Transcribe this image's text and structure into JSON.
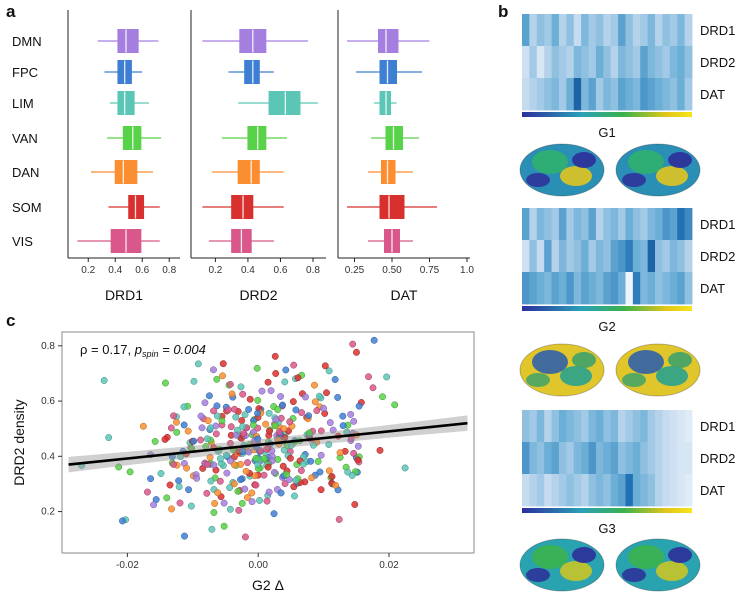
{
  "panels": {
    "a": "a",
    "b": "b",
    "c": "c"
  },
  "colors": {
    "DMN": "#a57fe0",
    "FPC": "#3e7fd4",
    "LIM": "#5cc6b6",
    "VAN": "#58d248",
    "DAN": "#fb8e30",
    "SOM": "#d8302f",
    "VIS": "#d9578a"
  },
  "chart_data": [
    {
      "type": "box",
      "title": "",
      "xlabel": "DRD1",
      "categories": [
        "DMN",
        "FPC",
        "LIM",
        "VAN",
        "DAN",
        "SOM",
        "VIS"
      ],
      "xlim": [
        0.05,
        0.88
      ],
      "ticks": [
        0.2,
        0.4,
        0.6,
        0.8
      ],
      "tick_labels": [
        "0.2",
        "0.4",
        "0.6",
        "0.8"
      ],
      "boxes": [
        {
          "min": 0.27,
          "q1": 0.42,
          "median": 0.48,
          "q3": 0.57,
          "max": 0.72
        },
        {
          "min": 0.32,
          "q1": 0.42,
          "median": 0.47,
          "q3": 0.52,
          "max": 0.6
        },
        {
          "min": 0.36,
          "q1": 0.42,
          "median": 0.47,
          "q3": 0.54,
          "max": 0.65
        },
        {
          "min": 0.34,
          "q1": 0.46,
          "median": 0.53,
          "q3": 0.59,
          "max": 0.74
        },
        {
          "min": 0.22,
          "q1": 0.4,
          "median": 0.46,
          "q3": 0.56,
          "max": 0.68
        },
        {
          "min": 0.35,
          "q1": 0.5,
          "median": 0.55,
          "q3": 0.61,
          "max": 0.73
        },
        {
          "min": 0.12,
          "q1": 0.37,
          "median": 0.48,
          "q3": 0.59,
          "max": 0.73
        }
      ]
    },
    {
      "type": "box",
      "title": "",
      "xlabel": "DRD2",
      "categories": [
        "DMN",
        "FPC",
        "LIM",
        "VAN",
        "DAN",
        "SOM",
        "VIS"
      ],
      "xlim": [
        0.05,
        0.88
      ],
      "ticks": [
        0.2,
        0.4,
        0.6,
        0.8
      ],
      "tick_labels": [
        "0.2",
        "0.4",
        "0.6",
        "0.8"
      ],
      "boxes": [
        {
          "min": 0.12,
          "q1": 0.35,
          "median": 0.43,
          "q3": 0.51,
          "max": 0.77
        },
        {
          "min": 0.28,
          "q1": 0.38,
          "median": 0.43,
          "q3": 0.47,
          "max": 0.56
        },
        {
          "min": 0.34,
          "q1": 0.53,
          "median": 0.63,
          "q3": 0.72,
          "max": 0.83
        },
        {
          "min": 0.24,
          "q1": 0.4,
          "median": 0.46,
          "q3": 0.51,
          "max": 0.64
        },
        {
          "min": 0.18,
          "q1": 0.34,
          "median": 0.42,
          "q3": 0.47,
          "max": 0.62
        },
        {
          "min": 0.12,
          "q1": 0.3,
          "median": 0.37,
          "q3": 0.43,
          "max": 0.62
        },
        {
          "min": 0.16,
          "q1": 0.3,
          "median": 0.36,
          "q3": 0.42,
          "max": 0.56
        }
      ]
    },
    {
      "type": "box",
      "title": "",
      "xlabel": "DAT",
      "categories": [
        "DMN",
        "FPC",
        "LIM",
        "VAN",
        "DAN",
        "SOM",
        "VIS"
      ],
      "xlim": [
        0.14,
        1.02
      ],
      "ticks": [
        0.25,
        0.5,
        0.75,
        1.0
      ],
      "tick_labels": [
        "0.25",
        "0.50",
        "0.75",
        "1.0"
      ],
      "boxes": [
        {
          "min": 0.2,
          "q1": 0.41,
          "median": 0.46,
          "q3": 0.54,
          "max": 0.75
        },
        {
          "min": 0.26,
          "q1": 0.42,
          "median": 0.47,
          "q3": 0.53,
          "max": 0.7
        },
        {
          "min": 0.38,
          "q1": 0.42,
          "median": 0.46,
          "q3": 0.49,
          "max": 0.53
        },
        {
          "min": 0.36,
          "q1": 0.46,
          "median": 0.51,
          "q3": 0.57,
          "max": 0.68
        },
        {
          "min": 0.34,
          "q1": 0.43,
          "median": 0.47,
          "q3": 0.52,
          "max": 0.64
        },
        {
          "min": 0.2,
          "q1": 0.42,
          "median": 0.48,
          "q3": 0.58,
          "max": 0.8
        },
        {
          "min": 0.34,
          "q1": 0.45,
          "median": 0.5,
          "q3": 0.55,
          "max": 0.64
        }
      ]
    },
    {
      "type": "heatmap",
      "title": "G1",
      "rows": [
        "DRD1",
        "DRD2",
        "DAT"
      ],
      "values": [
        [
          0.55,
          0.3,
          0.4,
          0.35,
          0.5,
          0.3,
          0.4,
          0.25,
          0.45,
          0.35,
          0.4,
          0.3,
          0.35,
          0.55,
          0.4,
          0.3,
          0.35,
          0.45,
          0.3,
          0.4,
          0.35,
          0.45,
          0.3
        ],
        [
          0.2,
          0.35,
          0.15,
          0.3,
          0.4,
          0.35,
          0.3,
          0.45,
          0.4,
          0.35,
          0.5,
          0.4,
          0.3,
          0.45,
          0.4,
          0.35,
          0.55,
          0.45,
          0.4,
          0.35,
          0.45,
          0.5,
          0.4
        ],
        [
          0.25,
          0.3,
          0.35,
          0.4,
          0.45,
          0.35,
          0.5,
          0.8,
          0.45,
          0.55,
          0.35,
          0.45,
          0.4,
          0.55,
          0.5,
          0.45,
          0.6,
          0.55,
          0.5,
          0.45,
          0.4,
          0.5,
          0.35
        ]
      ]
    },
    {
      "type": "heatmap",
      "title": "G2",
      "rows": [
        "DRD1",
        "DRD2",
        "DAT"
      ],
      "values": [
        [
          0.55,
          0.3,
          0.45,
          0.4,
          0.35,
          0.55,
          0.35,
          0.45,
          0.4,
          0.55,
          0.3,
          0.4,
          0.45,
          0.35,
          0.5,
          0.4,
          0.35,
          0.45,
          0.5,
          0.6,
          0.55,
          0.75,
          0.65
        ],
        [
          0.2,
          0.4,
          0.25,
          0.55,
          0.3,
          0.45,
          0.35,
          0.4,
          0.5,
          0.35,
          0.45,
          0.4,
          0.55,
          0.6,
          0.7,
          0.5,
          0.45,
          0.8,
          0.4,
          0.35,
          0.45,
          0.4,
          0.3
        ],
        [
          0.6,
          0.55,
          0.5,
          0.45,
          0.55,
          0.5,
          0.6,
          0.45,
          0.55,
          0.5,
          0.45,
          0.55,
          0.6,
          0.5,
          0.02,
          0.7,
          0.45,
          0.5,
          0.4,
          0.45,
          0.5,
          0.55,
          0.4
        ]
      ]
    },
    {
      "type": "heatmap",
      "title": "G3",
      "rows": [
        "DRD1",
        "DRD2",
        "DAT"
      ],
      "values": [
        [
          0.4,
          0.35,
          0.45,
          0.3,
          0.4,
          0.5,
          0.45,
          0.4,
          0.35,
          0.45,
          0.5,
          0.4,
          0.45,
          0.3,
          0.35,
          0.4,
          0.45,
          0.35,
          0.3,
          0.25,
          0.2,
          0.15,
          0.1
        ],
        [
          0.6,
          0.45,
          0.4,
          0.5,
          0.55,
          0.4,
          0.35,
          0.45,
          0.5,
          0.6,
          0.45,
          0.5,
          0.55,
          0.4,
          0.45,
          0.5,
          0.4,
          0.35,
          0.3,
          0.25,
          0.2,
          0.15,
          0.15
        ],
        [
          0.25,
          0.3,
          0.35,
          0.25,
          0.3,
          0.35,
          0.4,
          0.35,
          0.3,
          0.4,
          0.45,
          0.4,
          0.5,
          0.55,
          0.75,
          0.5,
          0.45,
          0.4,
          0.3,
          0.25,
          0.2,
          0.15,
          0.1
        ]
      ]
    },
    {
      "type": "scatter",
      "title": "",
      "annotation_rho": "ρ = 0.17,",
      "annotation_p": "p",
      "annotation_p_sub": "spin",
      "annotation_p_val": " = 0.004",
      "xlabel": "G2 Δ",
      "ylabel": "DRD2 density",
      "xlim": [
        -0.03,
        0.033
      ],
      "ylim": [
        0.05,
        0.85
      ],
      "xticks": [
        -0.02,
        0.0,
        0.02
      ],
      "xtick_labels": [
        "-0.02",
        "0.00",
        "0.02"
      ],
      "yticks": [
        0.2,
        0.4,
        0.6,
        0.8
      ],
      "ytick_labels": [
        "0.2",
        "0.4",
        "0.6",
        "0.8"
      ],
      "regression": {
        "x0": -0.029,
        "y0": 0.37,
        "x1": 0.032,
        "y1": 0.52,
        "band": 0.028
      },
      "n_points": 400,
      "seed": 42
    }
  ]
}
